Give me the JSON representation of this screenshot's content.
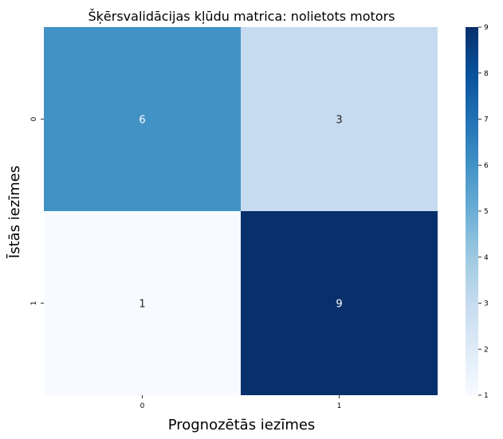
{
  "chart_data": {
    "type": "heatmap",
    "title": "Šķērsvalidācijas kļūdu matrica: nolietots motors",
    "xlabel": "Prognozētās iezīmes",
    "ylabel": "Īstās iezīmes",
    "x_categories": [
      "0",
      "1"
    ],
    "y_categories": [
      "0",
      "1"
    ],
    "values": [
      [
        6,
        3
      ],
      [
        1,
        9
      ]
    ],
    "colorbar": {
      "range": [
        1,
        9
      ],
      "ticks": [
        "1",
        "2",
        "3",
        "4",
        "5",
        "6",
        "7",
        "8",
        "9"
      ],
      "colormap": "Blues"
    }
  }
}
